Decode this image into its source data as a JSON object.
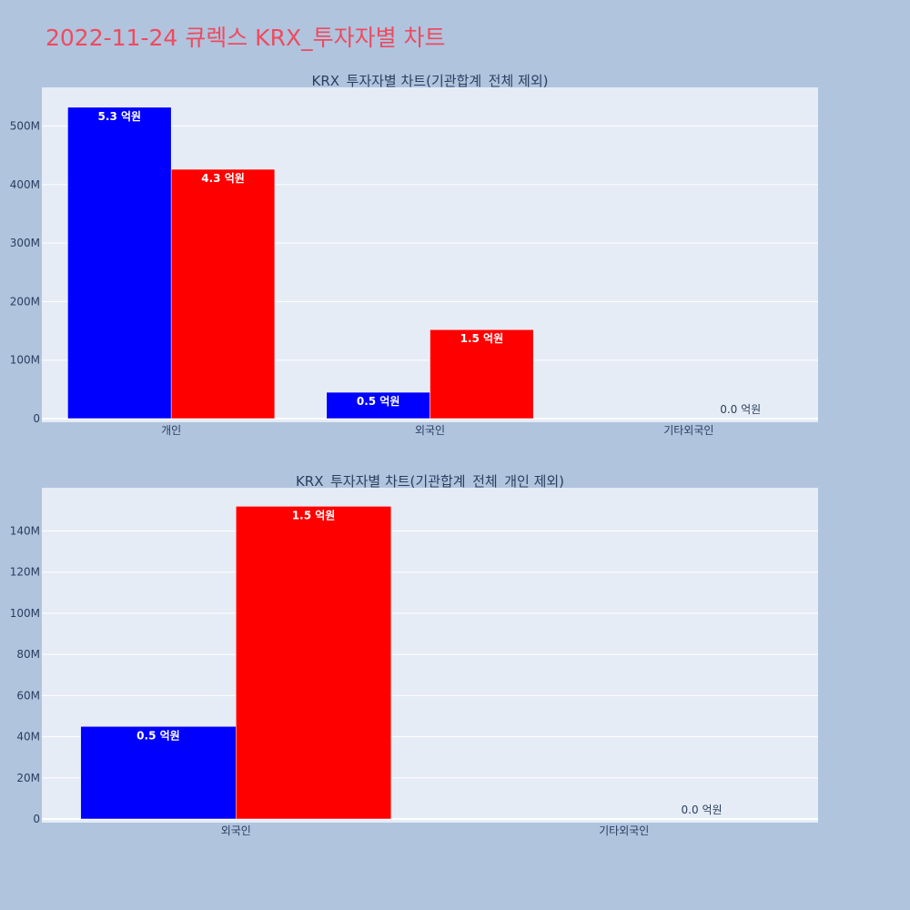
{
  "page": {
    "title": "2022-11-24 큐렉스 KRX_투자자별 차트",
    "background": "#b0c4de",
    "title_color": "#ef4a5f",
    "plot_background": "#e5ecf6"
  },
  "chart_data": [
    {
      "type": "bar",
      "title": "KRX_투자자별 차트(기관합계_전체 제외)",
      "categories": [
        "개인",
        "외국인",
        "기타외국인"
      ],
      "series": [
        {
          "color": "#0000ff",
          "values": [
            532000000,
            45000000,
            0
          ],
          "labels": [
            "5.3 억원",
            "0.5 억원",
            ""
          ]
        },
        {
          "color": "#ff0000",
          "values": [
            426000000,
            152000000,
            0
          ],
          "labels": [
            "4.3 억원",
            "1.5 억원",
            "0.0 억원"
          ]
        }
      ],
      "ylim": [
        0,
        566000000
      ],
      "yticks": [
        0,
        100000000,
        200000000,
        300000000,
        400000000,
        500000000
      ],
      "ytick_labels": [
        "0",
        "100M",
        "200M",
        "300M",
        "400M",
        "500M"
      ],
      "grid": true
    },
    {
      "type": "bar",
      "title": "KRX_투자자별 차트(기관합계_전체_개인 제외)",
      "categories": [
        "외국인",
        "기타외국인"
      ],
      "series": [
        {
          "color": "#0000ff",
          "values": [
            45000000,
            0
          ],
          "labels": [
            "0.5 억원",
            ""
          ]
        },
        {
          "color": "#ff0000",
          "values": [
            152000000,
            0
          ],
          "labels": [
            "1.5 억원",
            "0.0 억원"
          ]
        }
      ],
      "ylim": [
        0,
        161000000
      ],
      "yticks": [
        0,
        20000000,
        40000000,
        60000000,
        80000000,
        100000000,
        120000000,
        140000000
      ],
      "ytick_labels": [
        "0",
        "20M",
        "40M",
        "60M",
        "80M",
        "100M",
        "120M",
        "140M"
      ],
      "grid": true
    }
  ]
}
